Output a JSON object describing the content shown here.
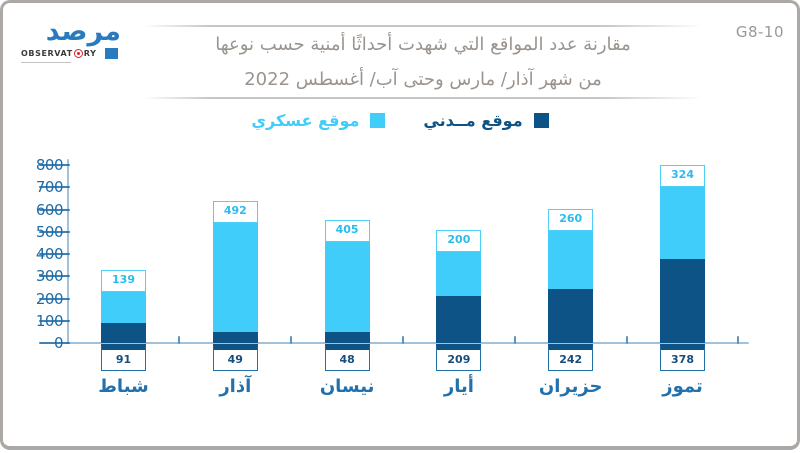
{
  "frame": {
    "ref_code": "G8-10"
  },
  "logo": {
    "name_arabic": "مرصد",
    "name_latin_part1": "OBSERVAT",
    "name_latin_part2": "RY"
  },
  "title": {
    "line1": "مقارنة عدد المواقع التي شهدت أحداثًا أمنية حسب نوعها",
    "line2": "من شهر آذار/ مارس وحتى آب/ أغسطس 2022"
  },
  "chart_data": {
    "type": "bar",
    "stacked": true,
    "direction": "rtl",
    "title": "مقارنة عدد المواقع التي شهدت أحداثًا أمنية حسب نوعها من شهر آذار/ مارس وحتى آب/ أغسطس 2022",
    "categories": [
      "شباط",
      "آذار",
      "نيسان",
      "أيار",
      "حزيران",
      "تموز"
    ],
    "series": [
      {
        "name": "موقع مــدني",
        "color": "#0E5385",
        "values": [
          91,
          49,
          48,
          209,
          242,
          378
        ]
      },
      {
        "name": "موقع عسكري",
        "color": "#41CDF9",
        "values": [
          139,
          492,
          405,
          200,
          260,
          324
        ]
      }
    ],
    "totals": [
      230,
      541,
      453,
      409,
      502,
      702
    ],
    "xlabel": "",
    "ylabel": "",
    "ylim": [
      0,
      800
    ],
    "yticks": [
      0,
      100,
      200,
      300,
      400,
      500,
      600,
      700,
      800
    ],
    "grid": false,
    "legend_position": "top"
  },
  "colors": {
    "civilian": "#0E5385",
    "military": "#41CDF9",
    "axis": "#A2C2DB",
    "tick_label": "#1F6CA7",
    "month_label": "#2271AC",
    "title_text": "#9B948E",
    "ref_text": "#9C9994",
    "logo_blue": "#2A7ABF",
    "logo_red": "#D6232E",
    "border": "#ACA8A4"
  }
}
